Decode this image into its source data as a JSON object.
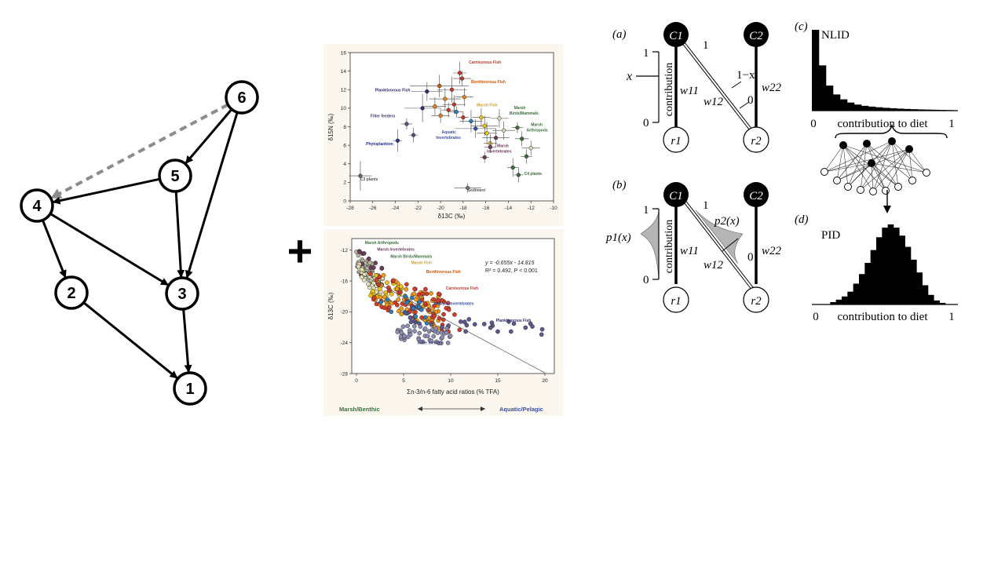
{
  "graph": {
    "nodes": [
      {
        "id": "1",
        "label": "1"
      },
      {
        "id": "2",
        "label": "2"
      },
      {
        "id": "3",
        "label": "3"
      },
      {
        "id": "4",
        "label": "4"
      },
      {
        "id": "5",
        "label": "5"
      },
      {
        "id": "6",
        "label": "6"
      }
    ],
    "edges": [
      {
        "from": "6",
        "to": "5",
        "style": "solid"
      },
      {
        "from": "6",
        "to": "3",
        "style": "solid"
      },
      {
        "from": "6",
        "to": "4",
        "style": "dashed"
      },
      {
        "from": "5",
        "to": "4",
        "style": "solid"
      },
      {
        "from": "5",
        "to": "3",
        "style": "solid"
      },
      {
        "from": "4",
        "to": "2",
        "style": "solid"
      },
      {
        "from": "4",
        "to": "3",
        "style": "solid"
      },
      {
        "from": "2",
        "to": "1",
        "style": "solid"
      },
      {
        "from": "3",
        "to": "1",
        "style": "solid"
      }
    ],
    "solid_color": "#000000",
    "dashed_color": "#8c8c8c"
  },
  "plus_sign": "+",
  "chart_data": [
    {
      "type": "scatter",
      "title": "",
      "xlabel": "δ13C (‰)",
      "ylabel": "δ15N (‰)",
      "xlim": [
        -28,
        -10
      ],
      "ylim": [
        0,
        16
      ],
      "x_ticks": [
        "-28",
        "-26",
        "-24",
        "-22",
        "-20",
        "-18",
        "-16",
        "-14",
        "-12",
        "-10"
      ],
      "y_ticks": [
        "0",
        "2",
        "4",
        "6",
        "8",
        "10",
        "12",
        "14",
        "16"
      ],
      "group_labels": [
        {
          "text": "Carnivorous Fish",
          "x": -17.5,
          "y": 14.8,
          "color": "#c0392b"
        },
        {
          "text": "Benthivorous Fish",
          "x": -17.3,
          "y": 12.7,
          "color": "#d35400"
        },
        {
          "text": "Planktivorous Fish",
          "x": -25.8,
          "y": 11.8,
          "color": "#2c2c6e"
        },
        {
          "text": "Marsh Fish",
          "x": -16.8,
          "y": 10.2,
          "color": "#c9a227"
        },
        {
          "text": "Marsh",
          "x": -13.5,
          "y": 9.9,
          "color": "#3b6e3b"
        },
        {
          "text": "Birds/Mammals",
          "x": -13.9,
          "y": 9.3,
          "color": "#3b6e3b"
        },
        {
          "text": "Filter feeders",
          "x": -26.2,
          "y": 9.0,
          "color": "#3d3d6e"
        },
        {
          "text": "Marsh",
          "x": -12.0,
          "y": 8.1,
          "color": "#3b6e3b"
        },
        {
          "text": "Arthropods",
          "x": -12.4,
          "y": 7.5,
          "color": "#3b6e3b"
        },
        {
          "text": "Aquatic",
          "x": -19.9,
          "y": 7.3,
          "color": "#3a4fa0"
        },
        {
          "text": "Invertebrates",
          "x": -20.4,
          "y": 6.7,
          "color": "#3a4fa0"
        },
        {
          "text": "Phytoplankton",
          "x": -26.6,
          "y": 6.0,
          "color": "#1f2f8a"
        },
        {
          "text": "Marsh",
          "x": -15.0,
          "y": 5.8,
          "color": "#6e3b5e"
        },
        {
          "text": "Invertebrates",
          "x": -15.9,
          "y": 5.2,
          "color": "#6e3b5e"
        },
        {
          "text": "C4 plants",
          "x": -12.6,
          "y": 2.8,
          "color": "#3b6e3b"
        },
        {
          "text": "C3 plants",
          "x": -27.1,
          "y": 2.2,
          "color": "#555555"
        },
        {
          "text": "Sediment",
          "x": -17.6,
          "y": 1.0,
          "color": "#555555"
        }
      ],
      "points": [
        {
          "x": -27.1,
          "y": 2.7,
          "ex": 1.0,
          "ey": 1.6,
          "color": "#666666"
        },
        {
          "x": -23.8,
          "y": 6.5,
          "ex": 0.4,
          "ey": 1.2,
          "color": "#2a3a8a"
        },
        {
          "x": -23.0,
          "y": 8.3,
          "ex": 0.5,
          "ey": 0.6,
          "color": "#555577"
        },
        {
          "x": -22.4,
          "y": 7.1,
          "ex": 0.4,
          "ey": 0.8,
          "color": "#555577"
        },
        {
          "x": -21.6,
          "y": 10.0,
          "ex": 1.6,
          "ey": 1.5,
          "color": "#2c2c6e"
        },
        {
          "x": -21.2,
          "y": 11.8,
          "ex": 1.4,
          "ey": 1.0,
          "color": "#2c2c6e"
        },
        {
          "x": -20.1,
          "y": 12.4,
          "ex": 2.6,
          "ey": 1.2,
          "color": "#d35400"
        },
        {
          "x": -19.6,
          "y": 11.0,
          "ex": 1.4,
          "ey": 1.2,
          "color": "#e67e22"
        },
        {
          "x": -19.0,
          "y": 12.0,
          "ex": 1.3,
          "ey": 1.4,
          "color": "#c0392b"
        },
        {
          "x": -18.8,
          "y": 10.4,
          "ex": 1.0,
          "ey": 1.0,
          "color": "#c0392b"
        },
        {
          "x": -18.3,
          "y": 13.8,
          "ex": 0.6,
          "ey": 1.2,
          "color": "#c0392b"
        },
        {
          "x": -18.1,
          "y": 13.2,
          "ex": 0.8,
          "ey": 0.8,
          "color": "#c0392b"
        },
        {
          "x": -17.9,
          "y": 11.2,
          "ex": 0.8,
          "ey": 1.0,
          "color": "#e67e22"
        },
        {
          "x": -20.5,
          "y": 10.2,
          "ex": 1.0,
          "ey": 1.0,
          "color": "#e67e22"
        },
        {
          "x": -19.3,
          "y": 9.8,
          "ex": 0.6,
          "ey": 0.8,
          "color": "#c0392b"
        },
        {
          "x": -18.6,
          "y": 9.6,
          "ex": 0.6,
          "ey": 0.6,
          "color": "#2a7fbf"
        },
        {
          "x": -20.0,
          "y": 9.2,
          "ex": 0.8,
          "ey": 0.8,
          "color": "#e67e22"
        },
        {
          "x": -18.0,
          "y": 9.0,
          "ex": 0.5,
          "ey": 0.6,
          "color": "#c0392b"
        },
        {
          "x": -17.3,
          "y": 8.6,
          "ex": 1.0,
          "ey": 1.2,
          "color": "#2a7fbf"
        },
        {
          "x": -16.9,
          "y": 7.8,
          "ex": 1.8,
          "ey": 1.0,
          "color": "#3a4fa0"
        },
        {
          "x": -16.4,
          "y": 9.0,
          "ex": 0.8,
          "ey": 1.0,
          "color": "#f1c40f"
        },
        {
          "x": -16.1,
          "y": 8.1,
          "ex": 1.2,
          "ey": 1.1,
          "color": "#f1c40f"
        },
        {
          "x": -15.9,
          "y": 7.3,
          "ex": 0.9,
          "ey": 1.2,
          "color": "#f1c40f"
        },
        {
          "x": -15.6,
          "y": 6.2,
          "ex": 0.6,
          "ey": 1.0,
          "color": "#f1c40f"
        },
        {
          "x": -14.8,
          "y": 8.9,
          "ex": 0.8,
          "ey": 1.0,
          "color": "#dcd6b4"
        },
        {
          "x": -14.4,
          "y": 7.6,
          "ex": 1.0,
          "ey": 1.0,
          "color": "#dcd6b4"
        },
        {
          "x": -15.1,
          "y": 6.8,
          "ex": 1.2,
          "ey": 1.0,
          "color": "#6e3b5e"
        },
        {
          "x": -15.6,
          "y": 5.8,
          "ex": 0.5,
          "ey": 0.6,
          "color": "#6e3b5e"
        },
        {
          "x": -16.1,
          "y": 4.7,
          "ex": 0.4,
          "ey": 0.6,
          "color": "#6e3b5e"
        },
        {
          "x": -13.2,
          "y": 7.9,
          "ex": 0.5,
          "ey": 0.6,
          "color": "#3b6e3b"
        },
        {
          "x": -12.8,
          "y": 6.7,
          "ex": 0.6,
          "ey": 0.8,
          "color": "#3b6e3b"
        },
        {
          "x": -12.0,
          "y": 5.7,
          "ex": 0.8,
          "ey": 0.8,
          "color": "#dcd6b4"
        },
        {
          "x": -12.4,
          "y": 4.8,
          "ex": 0.5,
          "ey": 0.8,
          "color": "#3b6e3b"
        },
        {
          "x": -13.6,
          "y": 3.6,
          "ex": 0.5,
          "ey": 1.0,
          "color": "#3b6e3b"
        },
        {
          "x": -13.1,
          "y": 2.8,
          "ex": 0.4,
          "ey": 0.8,
          "color": "#3b6e3b"
        },
        {
          "x": -17.6,
          "y": 1.4,
          "ex": 1.2,
          "ey": 0.5,
          "color": "#777777"
        }
      ]
    },
    {
      "type": "scatter",
      "title": "",
      "xlabel": "Σn-3/n-6 fatty acid ratios (% TFA)",
      "ylabel": "δ13C (‰)",
      "xlim": [
        -0.5,
        21
      ],
      "ylim": [
        -28,
        -10.5
      ],
      "x_ticks": [
        "0",
        "5",
        "10",
        "15",
        "20"
      ],
      "y_ticks": [
        "-12",
        "-16",
        "-20",
        "-24",
        "-28"
      ],
      "equation": "y = -0.655x - 14.815",
      "r2_text": "R² = 0.492, P < 0.001",
      "trendline": {
        "slope": -0.655,
        "intercept": -14.815,
        "x_range": [
          0,
          20
        ]
      },
      "group_labels": [
        {
          "text": "Marsh Arthropods",
          "x": 0.9,
          "y": -11.2,
          "color": "#3b6e3b"
        },
        {
          "text": "Marsh Invertebrates",
          "x": 2.2,
          "y": -12.1,
          "color": "#6e3b5e"
        },
        {
          "text": "Marsh Birds/Mammals",
          "x": 3.6,
          "y": -13.0,
          "color": "#3b6e3b"
        },
        {
          "text": "Marsh Fish",
          "x": 5.8,
          "y": -13.8,
          "color": "#c9a227"
        },
        {
          "text": "Benthivorous Fish",
          "x": 7.4,
          "y": -15.0,
          "color": "#d35400"
        },
        {
          "text": "Carnivorous Fish",
          "x": 9.5,
          "y": -17.1,
          "color": "#c0392b"
        },
        {
          "text": "Aquatic Invertebrates",
          "x": 8.2,
          "y": -19.1,
          "color": "#3a4fa0"
        },
        {
          "text": "Planktivorous Fish",
          "x": 14.8,
          "y": -21.3,
          "color": "#2c2c6e"
        },
        {
          "text": "Filter feeders",
          "x": 6.5,
          "y": -24.2,
          "color": "#3d3d6e"
        }
      ],
      "groups": [
        {
          "name": "Marsh Arthropods",
          "color": "#b5b89b",
          "n": 45,
          "xmin": 0.0,
          "xmax": 1.8,
          "slope": -0.9,
          "intercept": -13.4,
          "spread": 1.4
        },
        {
          "name": "Marsh Invertebrates",
          "color": "#6e3b5e",
          "n": 20,
          "xmin": 0.3,
          "xmax": 3.0,
          "slope": -0.9,
          "intercept": -13.2,
          "spread": 1.6
        },
        {
          "name": "Marsh Birds/Mammals",
          "color": "#e6e2b8",
          "n": 35,
          "xmin": 0.0,
          "xmax": 2.8,
          "slope": -0.8,
          "intercept": -14.6,
          "spread": 1.2
        },
        {
          "name": "Marsh Fish",
          "color": "#f1c40f",
          "n": 30,
          "xmin": 1.5,
          "xmax": 5.5,
          "slope": -0.6,
          "intercept": -15.4,
          "spread": 1.6
        },
        {
          "name": "Benthivorous Fish",
          "color": "#f39c12",
          "n": 70,
          "xmin": 2.0,
          "xmax": 9.0,
          "slope": -0.5,
          "intercept": -15.8,
          "spread": 2.2
        },
        {
          "name": "Carnivorous Fish",
          "color": "#d63a2a",
          "n": 70,
          "xmin": 1.5,
          "xmax": 11.0,
          "slope": -0.45,
          "intercept": -16.0,
          "spread": 2.4
        },
        {
          "name": "Aquatic Invertebrates",
          "color": "#2a7fbf",
          "n": 18,
          "xmin": 2.0,
          "xmax": 7.5,
          "slope": -0.4,
          "intercept": -17.2,
          "spread": 1.4
        },
        {
          "name": "Planktivorous Fish",
          "color": "#5a5a8e",
          "n": 30,
          "xmin": 5.0,
          "xmax": 20.0,
          "slope": -0.12,
          "intercept": -20.2,
          "spread": 1.0
        },
        {
          "name": "Filter feeders",
          "color": "#8e8eb4",
          "n": 50,
          "xmin": 4.0,
          "xmax": 10.0,
          "slope": -0.1,
          "intercept": -22.2,
          "spread": 1.0
        }
      ]
    },
    {
      "type": "bar",
      "panel": "(c)",
      "title": "NLID",
      "xlabel": "contribution to diet",
      "x_ticks": [
        "0",
        "1"
      ],
      "values": [
        1.0,
        0.56,
        0.31,
        0.2,
        0.14,
        0.1,
        0.075,
        0.06,
        0.05,
        0.042,
        0.035,
        0.03,
        0.025,
        0.021,
        0.018,
        0.015,
        0.013,
        0.011,
        0.009,
        0.007
      ]
    },
    {
      "type": "bar",
      "panel": "(d)",
      "title": "PID",
      "xlabel": "contribution to diet",
      "x_ticks": [
        "0",
        "1"
      ],
      "values": [
        0.0,
        0.03,
        0.06,
        0.1,
        0.16,
        0.26,
        0.38,
        0.52,
        0.68,
        0.84,
        0.96,
        1.0,
        0.96,
        0.86,
        0.72,
        0.56,
        0.4,
        0.24,
        0.12,
        0.05,
        0.02
      ]
    }
  ],
  "panel_a": {
    "label": "(a)",
    "consumer_1": "C1",
    "consumer_2": "C2",
    "resource_1": "r1",
    "resource_2": "r2",
    "axis_top": "1",
    "axis_bottom": "0",
    "x_marker": "x",
    "axis_label": "contribution",
    "w11": "w11",
    "w12": "w12",
    "w22": "w22",
    "edge_top": "1",
    "edge_mid": "1−x",
    "edge_bottom": "0"
  },
  "panel_b": {
    "label": "(b)",
    "consumer_1": "C1",
    "consumer_2": "C2",
    "resource_1": "r1",
    "resource_2": "r2",
    "axis_top": "1",
    "axis_bottom": "0",
    "p1": "p1(x)",
    "p2": "p2(x)",
    "axis_label": "contribution",
    "w11": "w11",
    "w12": "w12",
    "w22": "w22",
    "edge_top": "1",
    "edge_bottom": "0"
  }
}
